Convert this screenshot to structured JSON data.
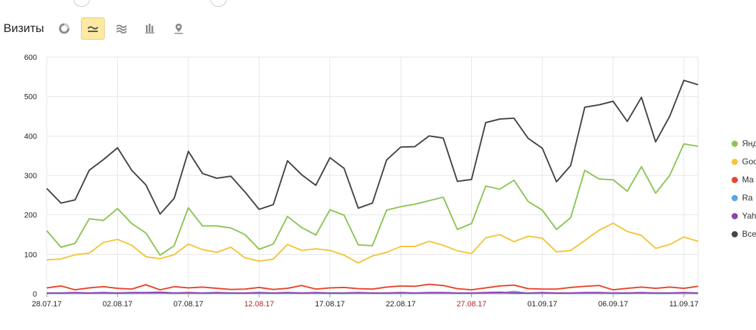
{
  "toolbar": {
    "title": "Визиты",
    "buttons": [
      {
        "icon": "pie-chart-icon",
        "active": false
      },
      {
        "icon": "line-chart-icon",
        "active": true
      },
      {
        "icon": "area-chart-icon",
        "active": false
      },
      {
        "icon": "bar-chart-icon",
        "active": false
      },
      {
        "icon": "map-icon",
        "active": false
      }
    ]
  },
  "chart_data": {
    "type": "line",
    "ylim": [
      0,
      600
    ],
    "yticks": [
      0,
      100,
      200,
      300,
      400,
      500,
      600
    ],
    "grid": true,
    "legend_position": "right",
    "x_labels": [
      "28.07.17",
      "02.08.17",
      "07.08.17",
      "12.08.17",
      "17.08.17",
      "22.08.17",
      "27.08.17",
      "01.09.17",
      "06.09.17",
      "11.09.17"
    ],
    "x_label_weekend": [
      false,
      false,
      false,
      true,
      false,
      false,
      true,
      false,
      false,
      false
    ],
    "x_label_index": [
      0,
      5,
      10,
      15,
      20,
      25,
      30,
      35,
      40,
      45
    ],
    "x": [
      "28.07.17",
      "29.07.17",
      "30.07.17",
      "31.07.17",
      "01.08.17",
      "02.08.17",
      "03.08.17",
      "04.08.17",
      "05.08.17",
      "06.08.17",
      "07.08.17",
      "08.08.17",
      "09.08.17",
      "10.08.17",
      "11.08.17",
      "12.08.17",
      "13.08.17",
      "14.08.17",
      "15.08.17",
      "16.08.17",
      "17.08.17",
      "18.08.17",
      "19.08.17",
      "20.08.17",
      "21.08.17",
      "22.08.17",
      "23.08.17",
      "24.08.17",
      "25.08.17",
      "26.08.17",
      "27.08.17",
      "28.08.17",
      "29.08.17",
      "30.08.17",
      "31.08.17",
      "01.09.17",
      "02.09.17",
      "03.09.17",
      "04.09.17",
      "05.09.17",
      "06.09.17",
      "07.09.17",
      "08.09.17",
      "09.09.17",
      "10.09.17",
      "11.09.17",
      "12.09.17"
    ],
    "series": [
      {
        "name": "Янд",
        "color": "#8dc456",
        "values": [
          160,
          118,
          128,
          190,
          186,
          216,
          178,
          154,
          98,
          122,
          218,
          172,
          172,
          167,
          150,
          113,
          126,
          196,
          168,
          149,
          213,
          199,
          124,
          122,
          212,
          221,
          227,
          236,
          245,
          163,
          178,
          273,
          265,
          288,
          234,
          212,
          163,
          193,
          313,
          291,
          289,
          260,
          322,
          255,
          300,
          380,
          374
        ]
      },
      {
        "name": "Goo",
        "color": "#f5c53a",
        "values": [
          86,
          88,
          99,
          103,
          130,
          138,
          123,
          94,
          89,
          99,
          126,
          112,
          105,
          118,
          91,
          83,
          88,
          125,
          110,
          114,
          110,
          98,
          78,
          96,
          105,
          120,
          120,
          133,
          123,
          109,
          102,
          142,
          150,
          132,
          146,
          141,
          106,
          110,
          135,
          161,
          179,
          158,
          148,
          115,
          125,
          144,
          133
        ]
      },
      {
        "name": "Ma",
        "color": "#e8462d",
        "values": [
          15,
          20,
          10,
          15,
          18,
          14,
          12,
          23,
          10,
          18,
          15,
          17,
          14,
          11,
          12,
          16,
          11,
          14,
          21,
          12,
          15,
          16,
          13,
          12,
          17,
          20,
          19,
          24,
          21,
          13,
          10,
          15,
          20,
          22,
          13,
          12,
          12,
          16,
          19,
          21,
          10,
          14,
          17,
          14,
          17,
          14,
          19
        ]
      },
      {
        "name": "Ra",
        "color": "#5aa6e0",
        "values": [
          1,
          1,
          1,
          2,
          1,
          1,
          1,
          2,
          1,
          1,
          2,
          1,
          1,
          1,
          2,
          1,
          1,
          1,
          2,
          1,
          1,
          1,
          1,
          2,
          1,
          1,
          1,
          2,
          1,
          1,
          1,
          2,
          1,
          6,
          1,
          1,
          2,
          1,
          1,
          2,
          1,
          1,
          2,
          1,
          1,
          2,
          1
        ]
      },
      {
        "name": "Yah",
        "color": "#8e44ad",
        "values": [
          2,
          2,
          3,
          2,
          3,
          2,
          3,
          3,
          4,
          2,
          3,
          2,
          3,
          2,
          2,
          3,
          2,
          3,
          2,
          3,
          2,
          2,
          3,
          2,
          2,
          3,
          2,
          3,
          3,
          2,
          2,
          3,
          4,
          2,
          2,
          3,
          2,
          2,
          3,
          3,
          2,
          2,
          3,
          2,
          2,
          3,
          2
        ]
      },
      {
        "name": "Все",
        "color": "#454545",
        "values": [
          267,
          230,
          238,
          313,
          340,
          370,
          313,
          276,
          202,
          242,
          361,
          305,
          293,
          298,
          258,
          214,
          226,
          337,
          302,
          275,
          345,
          318,
          217,
          230,
          339,
          372,
          373,
          400,
          395,
          285,
          290,
          434,
          443,
          445,
          394,
          369,
          284,
          325,
          473,
          479,
          488,
          437,
          498,
          385,
          450,
          541,
          530
        ]
      }
    ]
  }
}
